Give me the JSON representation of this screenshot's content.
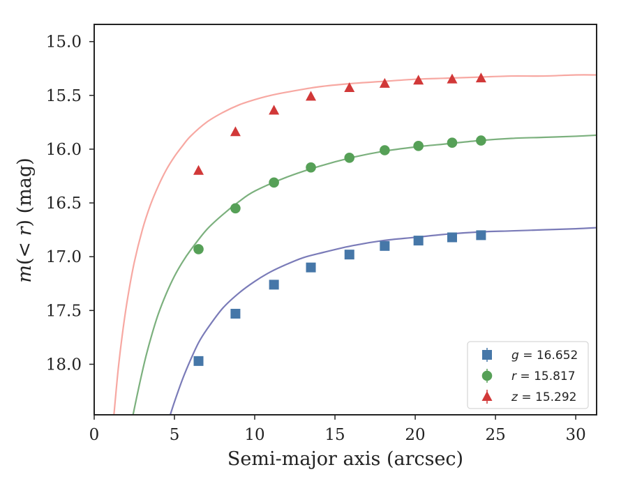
{
  "chart_data": {
    "type": "scatter",
    "title": "",
    "xlabel": "Semi-major axis (arcsec)",
    "ylabel_parts": {
      "prefix": "m",
      "mid": "(< ",
      "var": "r",
      "suffix": ") (mag)"
    },
    "ylabel": "m(< r) (mag)",
    "xlim": [
      0,
      31.3
    ],
    "ylim": [
      18.47,
      14.84
    ],
    "y_inverted": true,
    "xticks": [
      0,
      5,
      10,
      15,
      20,
      25,
      30
    ],
    "xtick_labels": [
      "0",
      "5",
      "10",
      "15",
      "20",
      "25",
      "30"
    ],
    "yticks": [
      15.0,
      15.5,
      16.0,
      16.5,
      17.0,
      17.5,
      18.0
    ],
    "ytick_labels": [
      "15.0",
      "15.5",
      "16.0",
      "16.5",
      "17.0",
      "17.5",
      "18.0"
    ],
    "grid": false,
    "legend_position": "lower-right",
    "series": [
      {
        "name": "g",
        "legend_var": "g",
        "legend_value": "16.652",
        "marker": "square",
        "color": "#4677a8",
        "curve_color": "#7a7bb8",
        "x": [
          6.5,
          8.8,
          11.2,
          13.5,
          15.9,
          18.1,
          20.2,
          22.3,
          24.1
        ],
        "y": [
          17.97,
          17.53,
          17.26,
          17.1,
          16.98,
          16.9,
          16.85,
          16.82,
          16.8
        ],
        "fit_x": [
          4.74,
          5.0,
          5.5,
          6.0,
          6.5,
          7.0,
          8.0,
          9.0,
          10.0,
          11.0,
          12.0,
          13.0,
          14.0,
          16.0,
          18.0,
          20.0,
          22.0,
          24.0,
          26.0,
          28.0,
          30.0,
          31.3
        ],
        "fit_y": [
          18.47,
          18.35,
          18.14,
          17.96,
          17.8,
          17.68,
          17.48,
          17.34,
          17.23,
          17.14,
          17.07,
          17.01,
          16.97,
          16.9,
          16.85,
          16.82,
          16.79,
          16.77,
          16.76,
          16.75,
          16.74,
          16.73
        ]
      },
      {
        "name": "r",
        "legend_var": "r",
        "legend_value": "15.817",
        "marker": "circle",
        "color": "#56a057",
        "curve_color": "#7bb07d",
        "x": [
          6.5,
          8.8,
          11.2,
          13.5,
          15.9,
          18.1,
          20.2,
          22.3,
          24.1
        ],
        "y": [
          16.93,
          16.55,
          16.31,
          16.17,
          16.08,
          16.01,
          15.97,
          15.94,
          15.92
        ],
        "fit_x": [
          2.42,
          2.8,
          3.2,
          3.6,
          4.0,
          4.5,
          5.0,
          5.5,
          6.0,
          7.0,
          8.0,
          9.0,
          10.0,
          12.0,
          14.0,
          16.0,
          18.0,
          20.0,
          22.0,
          24.0,
          26.0,
          28.0,
          30.0,
          31.3
        ],
        "fit_y": [
          18.47,
          18.2,
          17.94,
          17.72,
          17.53,
          17.34,
          17.18,
          17.05,
          16.94,
          16.75,
          16.61,
          16.49,
          16.39,
          16.26,
          16.16,
          16.08,
          16.02,
          15.98,
          15.95,
          15.92,
          15.9,
          15.89,
          15.88,
          15.87
        ]
      },
      {
        "name": "z",
        "legend_var": "z",
        "legend_value": "15.292",
        "marker": "triangle",
        "color": "#d13838",
        "curve_color": "#f7a8a2",
        "x": [
          6.5,
          8.8,
          11.2,
          13.5,
          15.9,
          18.1,
          20.2,
          22.3,
          24.1
        ],
        "y": [
          16.2,
          15.84,
          15.64,
          15.51,
          15.43,
          15.39,
          15.36,
          15.35,
          15.34
        ],
        "fit_x": [
          1.23,
          1.5,
          1.8,
          2.1,
          2.5,
          3.0,
          3.5,
          4.0,
          4.5,
          5.0,
          5.5,
          6.0,
          7.0,
          8.0,
          9.0,
          10.0,
          11.0,
          12.0,
          14.0,
          16.0,
          18.0,
          20.0,
          22.0,
          24.0,
          26.0,
          28.0,
          30.0,
          31.3
        ],
        "fit_y": [
          18.47,
          18.04,
          17.67,
          17.37,
          17.05,
          16.75,
          16.52,
          16.34,
          16.19,
          16.07,
          15.97,
          15.88,
          15.75,
          15.66,
          15.59,
          15.54,
          15.5,
          15.47,
          15.42,
          15.39,
          15.37,
          15.35,
          15.34,
          15.33,
          15.32,
          15.32,
          15.31,
          15.31
        ]
      }
    ]
  }
}
